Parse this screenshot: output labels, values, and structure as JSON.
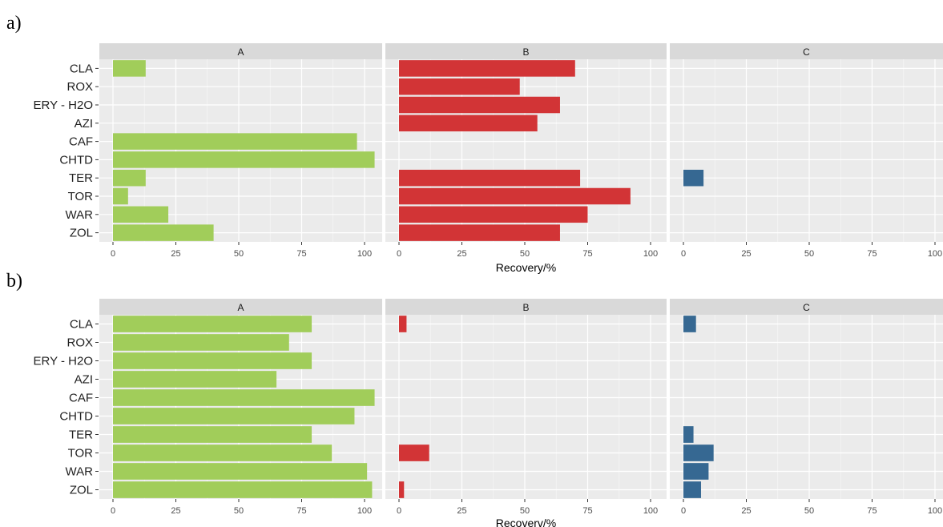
{
  "chart_data": [
    {
      "type": "bar",
      "orientation": "horizontal",
      "panel_label": "a)",
      "facets": [
        "A",
        "B",
        "C"
      ],
      "categories": [
        "CLA",
        "ROX",
        "ERY - H2O",
        "AZI",
        "CAF",
        "CHTD",
        "TER",
        "TOR",
        "WAR",
        "ZOL"
      ],
      "series": [
        {
          "facet": "A",
          "color": "#a1cd5a",
          "values": [
            13,
            0,
            0,
            0,
            97,
            104,
            13,
            6,
            22,
            40
          ]
        },
        {
          "facet": "B",
          "color": "#d23436",
          "values": [
            70,
            48,
            64,
            55,
            0,
            0,
            72,
            92,
            75,
            64
          ]
        },
        {
          "facet": "C",
          "color": "#366892",
          "values": [
            0,
            0,
            0,
            0,
            0,
            0,
            8,
            0,
            0,
            0
          ]
        }
      ],
      "xlabel": "Recovery/%",
      "xlim": [
        0,
        100
      ],
      "xticks": [
        0,
        25,
        50,
        75,
        100
      ],
      "grid": true
    },
    {
      "type": "bar",
      "orientation": "horizontal",
      "panel_label": "b)",
      "facets": [
        "A",
        "B",
        "C"
      ],
      "categories": [
        "CLA",
        "ROX",
        "ERY - H2O",
        "AZI",
        "CAF",
        "CHTD",
        "TER",
        "TOR",
        "WAR",
        "ZOL"
      ],
      "series": [
        {
          "facet": "A",
          "color": "#a1cd5a",
          "values": [
            79,
            70,
            79,
            65,
            104,
            96,
            79,
            87,
            101,
            103
          ]
        },
        {
          "facet": "B",
          "color": "#d23436",
          "values": [
            3,
            0,
            0,
            0,
            0,
            0,
            0,
            12,
            0,
            2
          ]
        },
        {
          "facet": "C",
          "color": "#366892",
          "values": [
            5,
            0,
            0,
            0,
            0,
            0,
            4,
            12,
            10,
            7
          ]
        }
      ],
      "xlabel": "Recoverv/%",
      "xlim": [
        0,
        100
      ],
      "xticks": [
        0,
        25,
        50,
        75,
        100
      ],
      "grid": true
    }
  ]
}
